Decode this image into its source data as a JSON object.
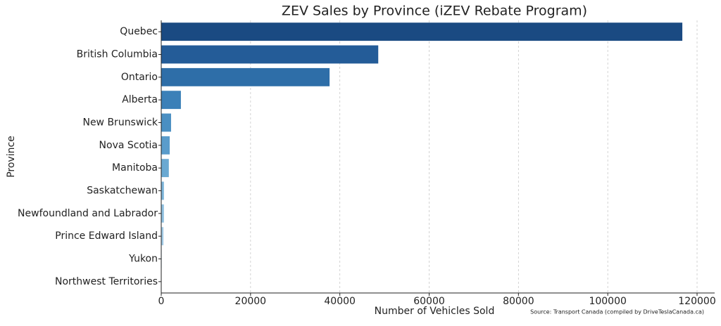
{
  "chart_data": {
    "type": "barh",
    "title": "ZEV Sales by Province (iZEV Rebate Program)",
    "x_label": "Number of Vehicles Sold",
    "y_label": "Province",
    "source": "Source: Transport Canada (compiled by DriveTeslaCanada.ca)",
    "categories": [
      "Quebec",
      "British Columbia",
      "Ontario",
      "Alberta",
      "New Brunswick",
      "Nova Scotia",
      "Manitoba",
      "Saskatchewan",
      "Newfoundland and Labrador",
      "Prince Edward Island",
      "Yukon",
      "Northwest Territories"
    ],
    "values": [
      116700,
      48600,
      37700,
      4400,
      2200,
      1900,
      1700,
      600,
      600,
      500,
      100,
      50
    ],
    "colors": [
      "#1a4a82",
      "#245c98",
      "#2e6ea8",
      "#3b80b8",
      "#4a8fc2",
      "#5a9ccb",
      "#6aa9d2",
      "#7db5da",
      "#90c0e0",
      "#a3cbe5",
      "#b5d6eb",
      "#c6e0f0"
    ],
    "xlim": [
      0,
      123940
    ],
    "xticks": [
      0,
      20000,
      40000,
      60000,
      80000,
      100000,
      120000
    ],
    "grid": true
  }
}
